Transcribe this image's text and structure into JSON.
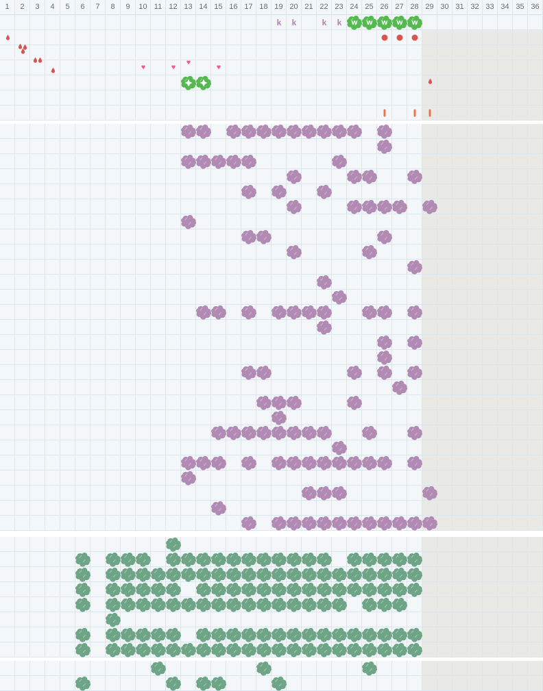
{
  "header": {
    "columns": [
      "1",
      "2",
      "3",
      "4",
      "5",
      "6",
      "7",
      "8",
      "9",
      "10",
      "11",
      "12",
      "13",
      "14",
      "15",
      "16",
      "17",
      "18",
      "19",
      "20",
      "21",
      "22",
      "23",
      "24",
      "25",
      "26",
      "27",
      "28",
      "29",
      "30",
      "31",
      "32",
      "33",
      "34",
      "35",
      "36"
    ]
  },
  "palette": {
    "background": "#f3f7f9",
    "grid_line": "#d8e7f1",
    "gray_area": "#e9eae5",
    "divider": "#ffffff",
    "header_text": "#5e6d7b",
    "purple_bush": "#b28bb4",
    "sage_bush": "#6fa587",
    "bright_bush": "#54b94f",
    "red_marker": "#d85450",
    "orange_tick": "#e8734e",
    "pink_heart": "#ec5b8e",
    "mauve_letter": "#b27fb2"
  },
  "sections": {
    "top": {
      "rows": 7,
      "k_marks": {
        "row": 1,
        "label": "k",
        "cols": [
          19,
          20,
          22,
          23
        ]
      },
      "water_bushes": {
        "row": 1,
        "label": "w",
        "cols": [
          24,
          25,
          26,
          27,
          28
        ]
      },
      "droplets": [
        {
          "row": 2,
          "col": 1,
          "count": 1
        },
        {
          "row": 2,
          "col": 2,
          "count": 3
        },
        {
          "row": 2,
          "col": 3,
          "count": 2
        },
        {
          "row": 2,
          "col": 4,
          "count": 1
        },
        {
          "row": 2,
          "col": 29,
          "count": 1
        }
      ],
      "red_dots": {
        "row": 2,
        "cols": [
          26,
          27,
          28
        ]
      },
      "hearts": [
        {
          "row": 4,
          "col": 10,
          "raised": false
        },
        {
          "row": 4,
          "col": 12,
          "raised": false
        },
        {
          "row": 4,
          "col": 13,
          "raised": true
        },
        {
          "row": 4,
          "col": 15,
          "raised": false
        }
      ],
      "flower_bushes": {
        "row": 5,
        "cols": [
          13,
          14
        ]
      },
      "orange_ticks": {
        "row": 7,
        "cols": [
          26,
          28,
          29
        ]
      }
    },
    "purple": {
      "rows": 27,
      "cells_by_row": {
        "1": [
          13,
          14,
          16,
          17,
          18,
          19,
          20,
          21,
          22,
          23,
          24,
          26
        ],
        "2": [
          26
        ],
        "3": [
          13,
          14,
          15,
          16,
          17,
          23
        ],
        "4": [
          20,
          24,
          25,
          28
        ],
        "5": [
          17,
          19,
          22
        ],
        "6": [
          20,
          24,
          25,
          26,
          27,
          29
        ],
        "7": [
          13
        ],
        "8": [
          17,
          18,
          26
        ],
        "9": [
          20,
          25
        ],
        "10": [
          28
        ],
        "11": [
          22
        ],
        "12": [
          23
        ],
        "13": [
          14,
          15,
          17,
          19,
          20,
          21,
          22,
          25,
          26,
          28
        ],
        "14": [
          22
        ],
        "15": [
          26,
          28
        ],
        "16": [
          26
        ],
        "17": [
          17,
          18,
          24,
          26,
          28
        ],
        "18": [
          27
        ],
        "19": [
          18,
          19,
          20,
          24
        ],
        "20": [
          19
        ],
        "21": [
          15,
          16,
          17,
          18,
          19,
          20,
          21,
          22,
          25,
          28
        ],
        "22": [
          23
        ],
        "23": [
          13,
          14,
          15,
          17,
          19,
          20,
          21,
          22,
          23,
          24,
          25,
          26,
          28
        ],
        "24": [
          13
        ],
        "25": [
          21,
          22,
          23,
          29
        ],
        "26": [
          15
        ],
        "27": [
          17,
          19,
          20,
          21,
          22,
          23,
          24,
          25,
          26,
          27,
          28,
          29
        ]
      }
    },
    "green": {
      "rows": 8,
      "cells_by_row": {
        "1": [
          12
        ],
        "2": [
          6,
          8,
          9,
          10,
          12,
          13,
          14,
          15,
          16,
          17,
          18,
          19,
          20,
          21,
          22,
          24,
          25,
          26,
          27,
          28
        ],
        "3": [
          6,
          8,
          9,
          10,
          11,
          12,
          13,
          14,
          15,
          16,
          17,
          18,
          19,
          20,
          21,
          22,
          23,
          24,
          25,
          26,
          27,
          28
        ],
        "4": [
          6,
          8,
          9,
          10,
          11,
          12,
          14,
          15,
          16,
          17,
          18,
          19,
          20,
          21,
          22,
          23,
          24,
          25,
          26,
          27,
          28
        ],
        "5": [
          6,
          8,
          9,
          10,
          11,
          12,
          13,
          14,
          15,
          16,
          17,
          18,
          19,
          20,
          21,
          22,
          23,
          25,
          26,
          27
        ],
        "6": [
          8
        ],
        "7": [
          6,
          8,
          9,
          10,
          11,
          12,
          14,
          15,
          16,
          17,
          18,
          19,
          20,
          21,
          22,
          23,
          24,
          25,
          26,
          27,
          28
        ],
        "8": [
          6,
          8,
          9,
          10,
          11,
          12,
          13,
          14,
          15,
          16,
          17,
          18,
          19,
          20,
          21,
          22,
          23,
          24,
          25,
          26,
          27,
          28
        ]
      }
    },
    "bottom": {
      "rows": 2,
      "cells_by_row": {
        "1": [
          11,
          18,
          25
        ],
        "2": [
          6,
          12,
          14,
          15,
          19
        ]
      }
    }
  }
}
